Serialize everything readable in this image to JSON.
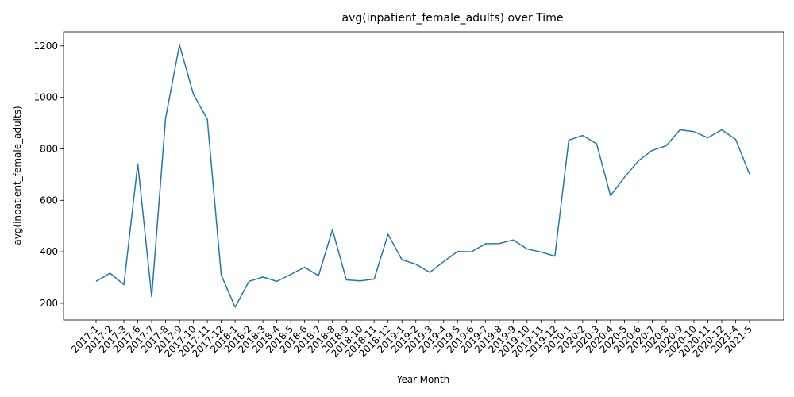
{
  "chart_data": {
    "type": "line",
    "title": "avg(inpatient_female_adults) over Time",
    "xlabel": "Year-Month",
    "ylabel": "avg(inpatient_female_adults)",
    "ylim": [
      135,
      1255
    ],
    "yticks": [
      200,
      400,
      600,
      800,
      1000,
      1200
    ],
    "grid": false,
    "legend": "none",
    "line_color": "#1f77b4",
    "categories": [
      "2017-1",
      "2017-2",
      "2017-3",
      "2017-6",
      "2017-7",
      "2017-8",
      "2017-9",
      "2017-10",
      "2017-11",
      "2017-12",
      "2018-1",
      "2018-2",
      "2018-3",
      "2018-4",
      "2018-5",
      "2018-6",
      "2018-7",
      "2018-8",
      "2018-9",
      "2018-10",
      "2018-11",
      "2018-12",
      "2019-1",
      "2019-2",
      "2019-3",
      "2019-4",
      "2019-5",
      "2019-6",
      "2019-7",
      "2019-8",
      "2019-9",
      "2019-10",
      "2019-11",
      "2019-12",
      "2020-1",
      "2020-2",
      "2020-3",
      "2020-4",
      "2020-5",
      "2020-6",
      "2020-7",
      "2020-8",
      "2020-9",
      "2020-10",
      "2020-11",
      "2020-12",
      "2021-4",
      "2021-5"
    ],
    "series": [
      {
        "values": [
          285,
          317,
          272,
          742,
          226,
          920,
          1204,
          1012,
          915,
          310,
          185,
          285,
          302,
          285,
          312,
          340,
          307,
          486,
          291,
          287,
          294,
          468,
          369,
          352,
          320,
          362,
          401,
          400,
          431,
          432,
          446,
          411,
          399,
          383,
          834,
          852,
          820,
          618,
          689,
          753,
          794,
          812,
          874,
          867,
          843,
          874,
          837,
          702
        ]
      }
    ]
  }
}
